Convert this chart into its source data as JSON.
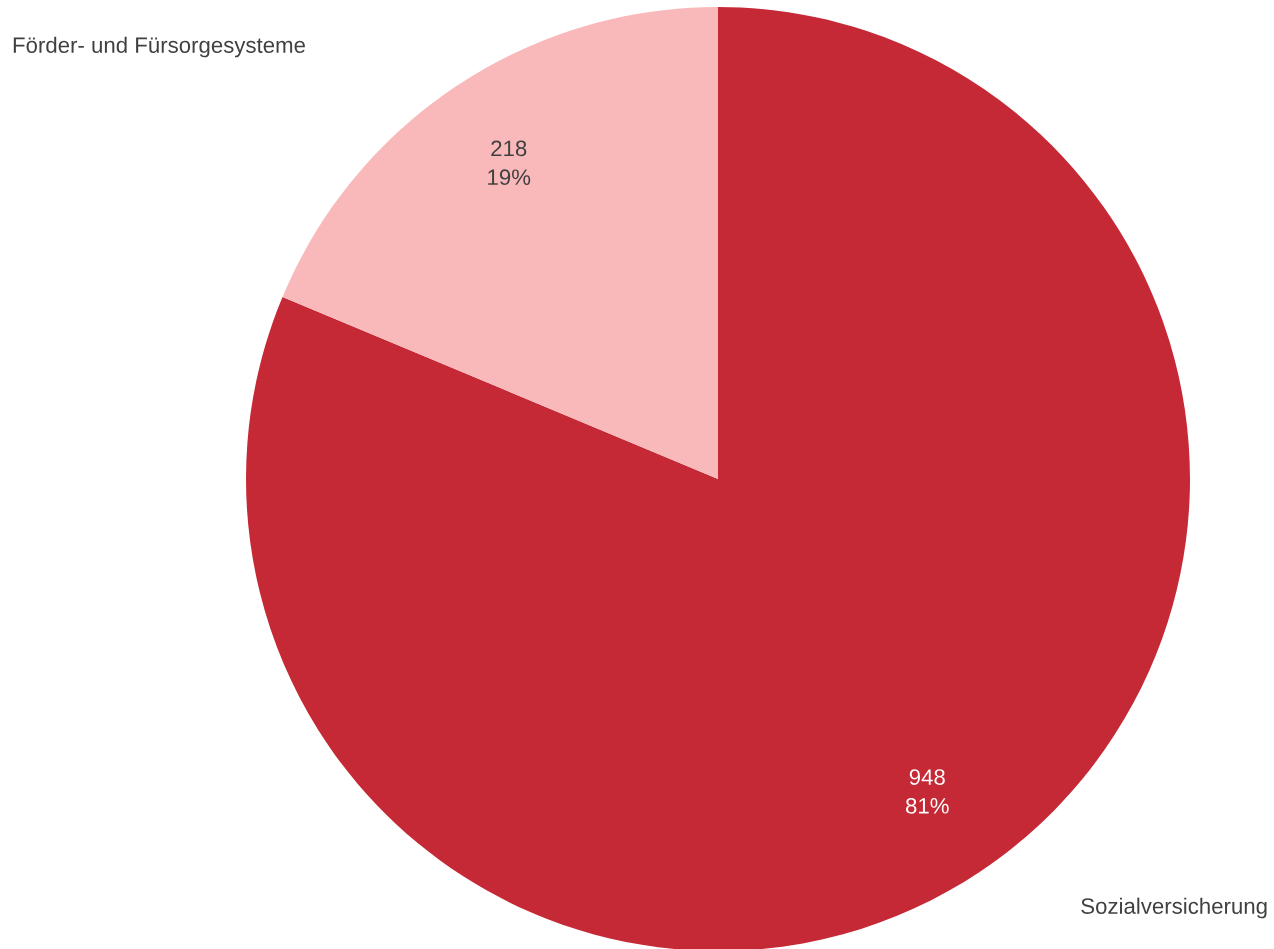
{
  "chart_data": {
    "type": "pie",
    "categories": [
      "Sozialversicherung",
      "Förder- und Fürsorgesysteme"
    ],
    "values": [
      948,
      218
    ],
    "colors": [
      "#c62936",
      "#f9b8b9"
    ],
    "value_labels": [
      "948\n81%",
      "218\n19%"
    ],
    "legend": false
  }
}
